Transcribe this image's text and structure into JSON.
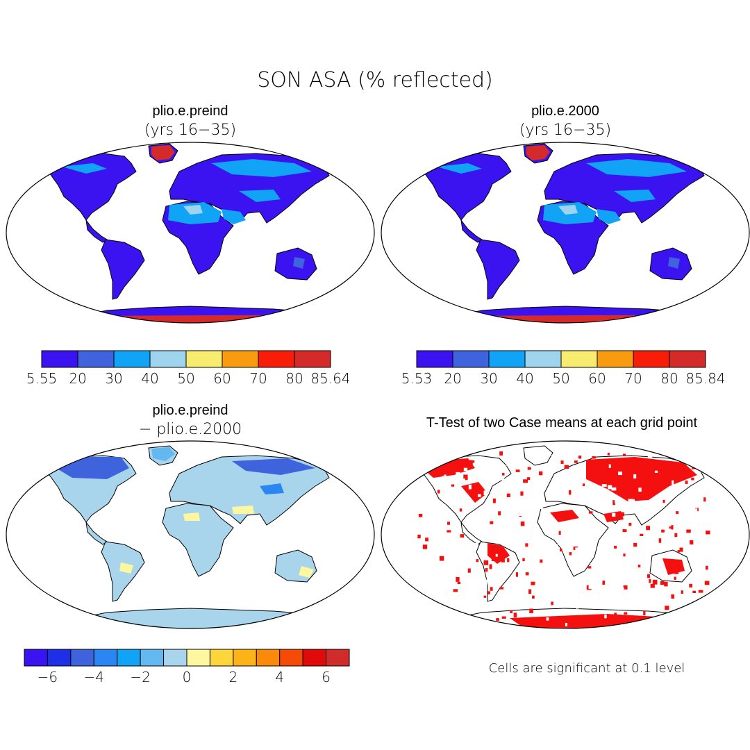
{
  "title": "SON ASA (% reflected)",
  "panels": [
    {
      "id": "preind",
      "title": "plio.e.preind",
      "subtitle": "(yrs 16−35)",
      "colorbar": {
        "colors": [
          "#3a13f0",
          "#3f63dd",
          "#11a3f5",
          "#9fd4ee",
          "#f8ec70",
          "#f89b10",
          "#f81d08",
          "#d42a2a"
        ],
        "labels": [
          "5.55",
          "20",
          "30",
          "40",
          "50",
          "60",
          "70",
          "80",
          "85.64"
        ]
      }
    },
    {
      "id": "y2000",
      "title": "plio.e.2000",
      "subtitle": "(yrs 16−35)",
      "colorbar": {
        "colors": [
          "#3a13f0",
          "#3f63dd",
          "#11a3f5",
          "#9fd4ee",
          "#f8ec70",
          "#f89b10",
          "#f81d08",
          "#d42a2a"
        ],
        "labels": [
          "5.53",
          "20",
          "30",
          "40",
          "50",
          "60",
          "70",
          "80",
          "85.84"
        ]
      }
    },
    {
      "id": "diff",
      "title": "plio.e.preind",
      "subtitle": "− plio.e.2000",
      "colorbar": {
        "colors": [
          "#3a13f0",
          "#1f2fe8",
          "#3f63dd",
          "#2a86f2",
          "#11a3f5",
          "#63b8f0",
          "#a8d4ec",
          "#fdf7a0",
          "#fcd63a",
          "#fbb318",
          "#f98a0c",
          "#f54a08",
          "#e00a0a",
          "#d02c2c"
        ],
        "labels": [
          "−6",
          "−4",
          "−2",
          "0",
          "2",
          "4",
          "6"
        ]
      }
    },
    {
      "id": "ttest",
      "title": "T-Test of two Case means at each grid point",
      "note": "Cells are significant at 0.1 level"
    }
  ],
  "colors": {
    "land_blue": "#3a13f0",
    "antarctica_red": "#d42a2a",
    "diff_bg": "#a8d4ec",
    "sig_red": "#f51010"
  }
}
